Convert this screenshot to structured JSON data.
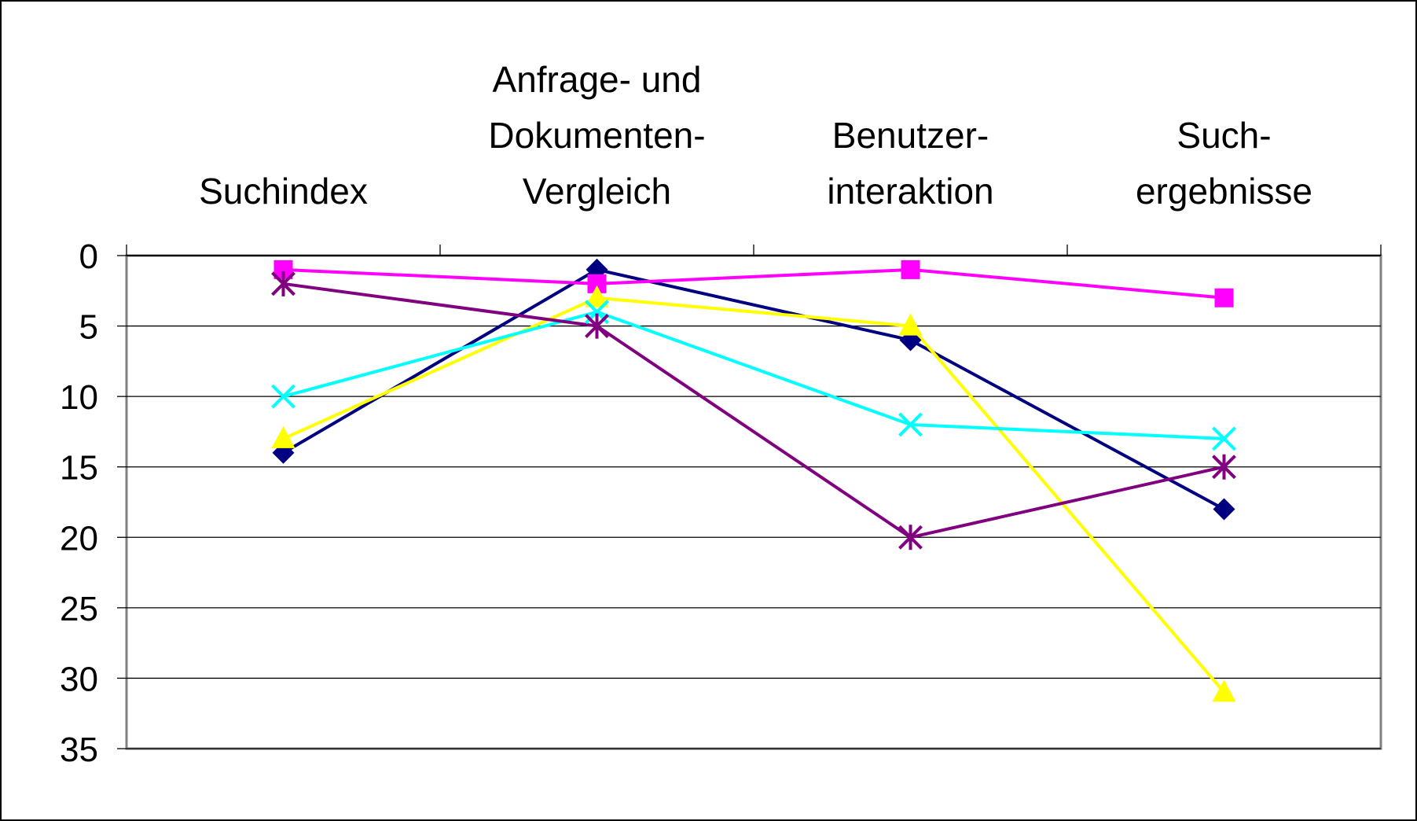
{
  "chart_data": {
    "type": "line",
    "categories": [
      "Suchindex",
      "Anfrage- und\nDokumenten-\nVergleich",
      "Benutzer-\ninteraktion",
      "Such-\nergebnisse"
    ],
    "ylim": [
      0,
      35
    ],
    "yticks": [
      0,
      5,
      10,
      15,
      20,
      25,
      30,
      35
    ],
    "y_inverted": true,
    "grid": true,
    "series": [
      {
        "color": "#000080",
        "marker": "diamond",
        "values": [
          14,
          1,
          6,
          18
        ]
      },
      {
        "color": "#ff00ff",
        "marker": "square",
        "values": [
          1,
          2,
          1,
          3
        ]
      },
      {
        "color": "#ffff00",
        "marker": "triangle",
        "values": [
          13,
          3,
          5,
          31
        ]
      },
      {
        "color": "#00ffff",
        "marker": "x",
        "values": [
          10,
          4,
          12,
          13
        ]
      },
      {
        "color": "#800080",
        "marker": "star",
        "values": [
          2,
          5,
          20,
          15
        ]
      }
    ]
  }
}
